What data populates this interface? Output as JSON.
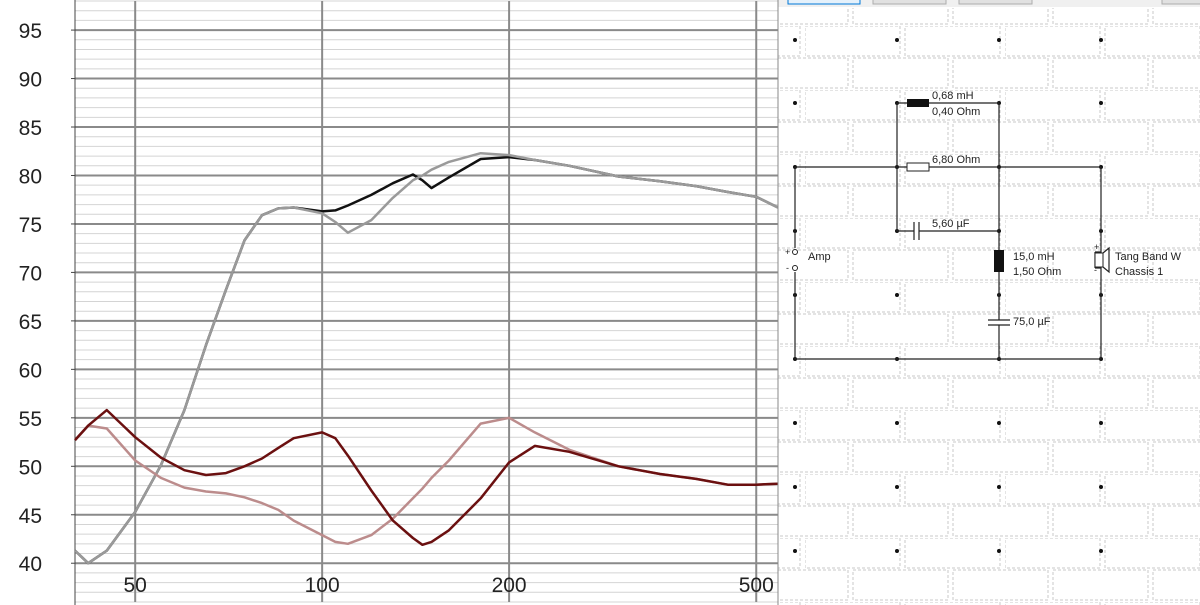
{
  "chart_data": {
    "type": "line",
    "x": [
      40,
      42,
      45,
      50,
      55,
      60,
      65,
      70,
      75,
      80,
      85,
      90,
      100,
      105,
      110,
      120,
      130,
      140,
      145,
      150,
      160,
      180,
      200,
      220,
      250,
      300,
      350,
      400,
      450,
      500,
      542
    ],
    "series": [
      {
        "color": "#111111",
        "values": [
          41.3,
          40,
          41.3,
          45.3,
          50.1,
          55.8,
          62.5,
          68.2,
          73.3,
          75.9,
          76.6,
          76.7,
          76.3,
          76.4,
          76.9,
          78,
          79.2,
          80.1,
          79.5,
          78.7,
          79.8,
          81.7,
          81.9,
          81.6,
          81,
          79.9,
          79.4,
          78.9,
          78.3,
          77.8,
          76.7
        ]
      },
      {
        "color": "#9a9a9a",
        "values": [
          41.3,
          40,
          41.3,
          45.3,
          50.1,
          55.8,
          62.5,
          68.2,
          73.3,
          75.9,
          76.6,
          76.7,
          76.1,
          75.2,
          74.1,
          75.4,
          77.7,
          79.5,
          80,
          80.6,
          81.4,
          82.3,
          82.1,
          81.6,
          81,
          79.9,
          79.4,
          78.9,
          78.3,
          77.8,
          76.7
        ]
      },
      {
        "color": "#bc8c8c",
        "values": [
          52.7,
          54.2,
          53.9,
          50.6,
          48.8,
          47.8,
          47.4,
          47.2,
          46.8,
          46.2,
          45.5,
          44.4,
          42.9,
          42.2,
          42,
          42.9,
          44.6,
          46.7,
          47.7,
          48.8,
          50.6,
          54.4,
          55,
          53.5,
          51.7,
          50,
          49.2,
          48.7,
          48.1,
          48.1,
          48.2
        ]
      },
      {
        "color": "#6b1010",
        "values": [
          52.7,
          54.2,
          55.8,
          53,
          50.9,
          49.6,
          49.1,
          49.3,
          50,
          50.8,
          51.9,
          52.9,
          53.5,
          52.9,
          51.1,
          47.5,
          44.4,
          42.6,
          41.9,
          42.2,
          43.4,
          46.7,
          50.4,
          52.1,
          51.5,
          50,
          49.2,
          48.7,
          48.1,
          48.1,
          48.2
        ]
      }
    ],
    "xlim": [
      40,
      542
    ],
    "xscale": "log",
    "xticks": [
      50,
      100,
      200,
      500
    ],
    "ylim": [
      36,
      98
    ],
    "yticks": [
      40,
      45,
      50,
      55,
      60,
      65,
      70,
      75,
      80,
      85,
      90,
      95
    ],
    "grid": true,
    "minor_grid_step": 1
  },
  "diagram": {
    "labels": {
      "l1_value": "0,68 mH",
      "l1_resistance": "0,40 Ohm",
      "r1": "6,80 Ohm",
      "c1": "5,60 µF",
      "l2_value": "15,0 mH",
      "l2_resistance": "1,50 Ohm",
      "c2": "75,0 µF",
      "source": "Amp",
      "driver": "Tang Band W",
      "driver_chassis": "Chassis 1",
      "plus": "+",
      "minus": "-"
    }
  }
}
